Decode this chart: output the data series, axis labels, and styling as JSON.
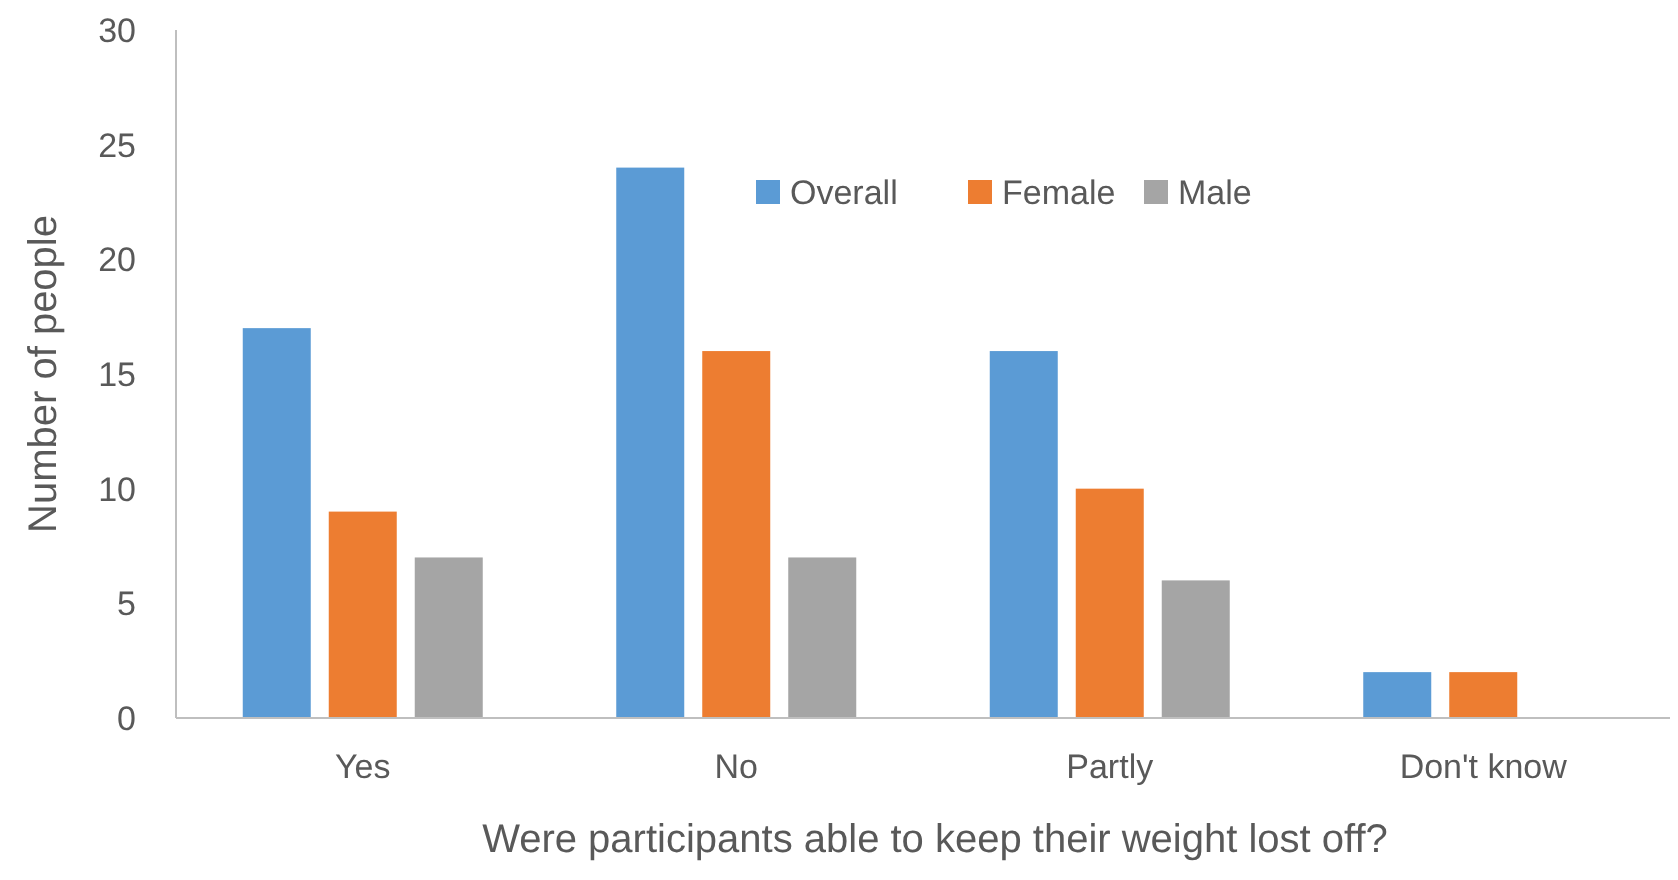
{
  "chart_data": {
    "type": "bar",
    "xlabel": "Were participants able to keep their weight lost off?",
    "ylabel": "Number of people",
    "categories": [
      "Yes",
      "No",
      "Partly",
      "Don't know"
    ],
    "series": [
      {
        "name": "Overall",
        "color": "#5b9bd5",
        "values": [
          17,
          24,
          16,
          2
        ]
      },
      {
        "name": "Female",
        "color": "#ed7d31",
        "values": [
          9,
          16,
          10,
          2
        ]
      },
      {
        "name": "Male",
        "color": "#a5a5a5",
        "values": [
          7,
          7,
          6,
          0
        ]
      }
    ],
    "ylim": [
      0,
      30
    ],
    "yticks": [
      0,
      5,
      10,
      15,
      20,
      25,
      30
    ],
    "legend": "top"
  }
}
